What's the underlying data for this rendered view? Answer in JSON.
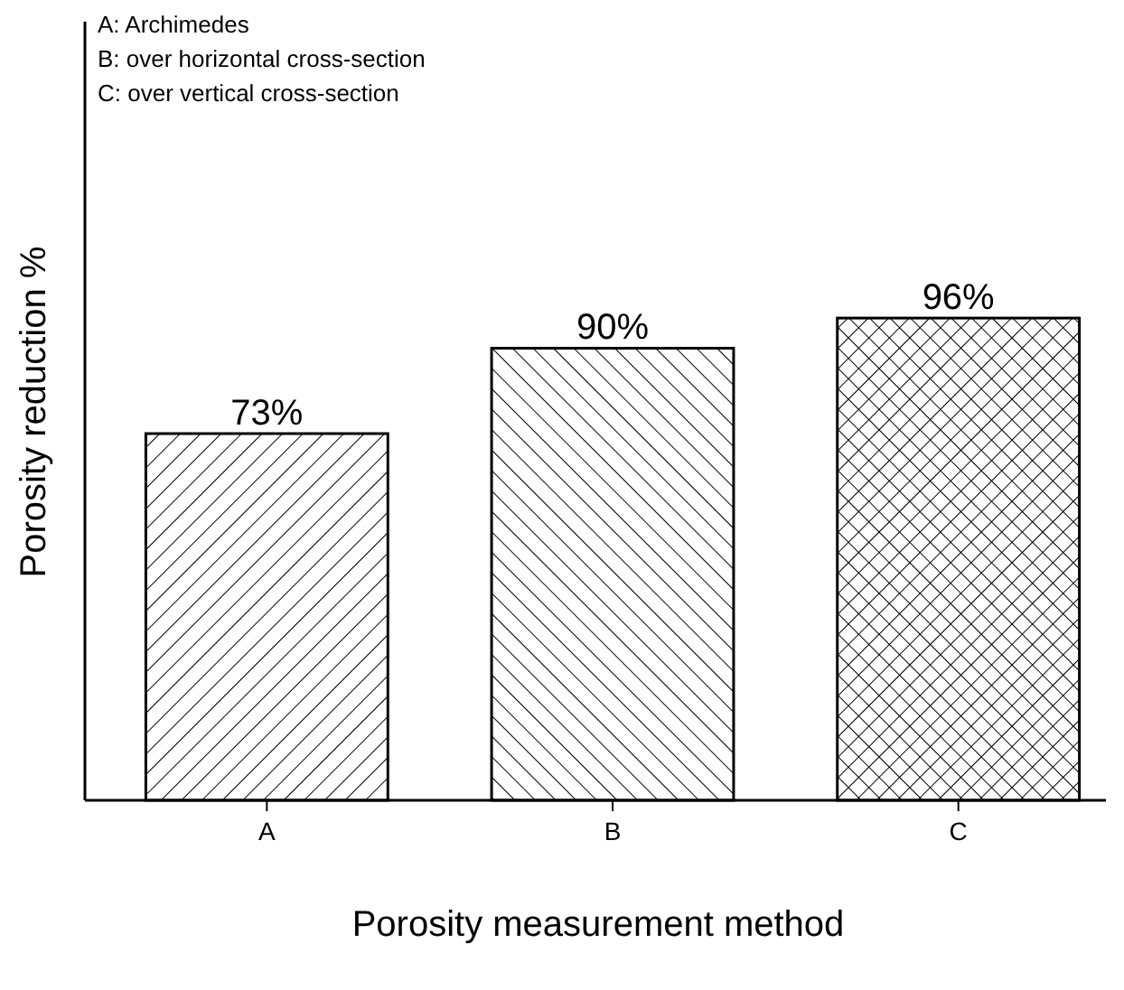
{
  "chart_data": {
    "type": "bar",
    "ylim": [
      0,
      155
    ],
    "tick_labels": "x",
    "xlabel": "Porosity measurement method",
    "ylabel": "Porosity reduction %",
    "categories": [
      "A",
      "B",
      "C"
    ],
    "values": [
      73,
      90,
      96
    ],
    "value_labels": [
      "73%",
      "90%",
      "96%"
    ],
    "color": "#000000",
    "annotations": [
      "A: Archimedes",
      "B: over horizontal cross-section",
      "C: over vertical cross-section"
    ]
  }
}
